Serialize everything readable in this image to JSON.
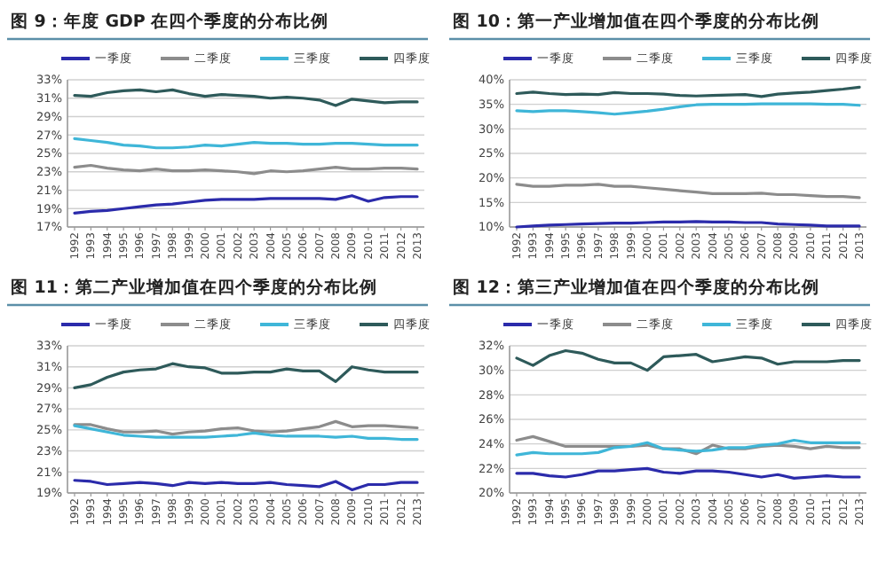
{
  "chart_data": [
    {
      "type": "line",
      "title": "图 9：年度 GDP 在四个季度的分布比例",
      "categories": [
        "1992",
        "1993",
        "1994",
        "1995",
        "1996",
        "1997",
        "1998",
        "1999",
        "2000",
        "2001",
        "2002",
        "2003",
        "2004",
        "2005",
        "2006",
        "2007",
        "2008",
        "2009",
        "2010",
        "2011",
        "2012",
        "2013"
      ],
      "ylim": [
        17,
        33
      ],
      "yticks": [
        {
          "value": 17,
          "label": "17%"
        },
        {
          "value": 19,
          "label": "19%"
        },
        {
          "value": 21,
          "label": "21%"
        },
        {
          "value": 23,
          "label": "23%"
        },
        {
          "value": 25,
          "label": "25%"
        },
        {
          "value": 27,
          "label": "27%"
        },
        {
          "value": 29,
          "label": "29%"
        },
        {
          "value": 31,
          "label": "31%"
        },
        {
          "value": 33,
          "label": "33%"
        }
      ],
      "grid": "y",
      "legend": "top",
      "series": [
        {
          "name": "一季度",
          "color": "#2b2bab",
          "values": [
            18.5,
            18.7,
            18.8,
            19.0,
            19.2,
            19.4,
            19.5,
            19.7,
            19.9,
            20.0,
            20.0,
            20.0,
            20.1,
            20.1,
            20.1,
            20.1,
            20.0,
            20.4,
            19.8,
            20.2,
            20.3,
            20.3
          ]
        },
        {
          "name": "二季度",
          "color": "#8c8c8c",
          "values": [
            23.5,
            23.7,
            23.4,
            23.2,
            23.1,
            23.3,
            23.1,
            23.1,
            23.2,
            23.1,
            23.0,
            22.8,
            23.1,
            23.0,
            23.1,
            23.3,
            23.5,
            23.3,
            23.3,
            23.4,
            23.4,
            23.3
          ]
        },
        {
          "name": "三季度",
          "color": "#3fb6d8",
          "values": [
            26.6,
            26.4,
            26.2,
            25.9,
            25.8,
            25.6,
            25.6,
            25.7,
            25.9,
            25.8,
            26.0,
            26.2,
            26.1,
            26.1,
            26.0,
            26.0,
            26.1,
            26.1,
            26.0,
            25.9,
            25.9,
            25.9
          ]
        },
        {
          "name": "四季度",
          "color": "#2e5a5a",
          "values": [
            31.3,
            31.2,
            31.6,
            31.8,
            31.9,
            31.7,
            31.9,
            31.5,
            31.2,
            31.4,
            31.3,
            31.2,
            31.0,
            31.1,
            31.0,
            30.8,
            30.2,
            30.9,
            30.7,
            30.5,
            30.6,
            30.6
          ]
        }
      ]
    },
    {
      "type": "line",
      "title": "图 10：第一产业增加值在四个季度的分布比例",
      "categories": [
        "1992",
        "1993",
        "1994",
        "1995",
        "1996",
        "1997",
        "1998",
        "1999",
        "2000",
        "2001",
        "2002",
        "2003",
        "2004",
        "2005",
        "2006",
        "2007",
        "2008",
        "2009",
        "2010",
        "2011",
        "2012",
        "2013"
      ],
      "ylim": [
        10,
        40
      ],
      "yticks": [
        {
          "value": 10,
          "label": "10%"
        },
        {
          "value": 15,
          "label": "15%"
        },
        {
          "value": 20,
          "label": "20%"
        },
        {
          "value": 25,
          "label": "25%"
        },
        {
          "value": 30,
          "label": "30%"
        },
        {
          "value": 35,
          "label": "35%"
        },
        {
          "value": 40,
          "label": "40%"
        }
      ],
      "grid": "y",
      "legend": "top",
      "series": [
        {
          "name": "一季度",
          "color": "#2b2bab",
          "values": [
            10.0,
            10.2,
            10.4,
            10.5,
            10.6,
            10.7,
            10.8,
            10.8,
            10.9,
            11.0,
            11.0,
            11.1,
            11.0,
            11.0,
            10.9,
            10.9,
            10.6,
            10.5,
            10.4,
            10.2,
            10.2,
            10.2
          ]
        },
        {
          "name": "二季度",
          "color": "#8c8c8c",
          "values": [
            18.7,
            18.3,
            18.3,
            18.5,
            18.5,
            18.7,
            18.3,
            18.3,
            18.0,
            17.7,
            17.4,
            17.1,
            16.8,
            16.8,
            16.8,
            16.9,
            16.6,
            16.6,
            16.4,
            16.2,
            16.2,
            16.0
          ]
        },
        {
          "name": "三季度",
          "color": "#3fb6d8",
          "values": [
            33.7,
            33.5,
            33.7,
            33.7,
            33.5,
            33.3,
            33.0,
            33.3,
            33.6,
            34.0,
            34.5,
            34.9,
            35.0,
            35.0,
            35.0,
            35.1,
            35.1,
            35.1,
            35.1,
            35.0,
            35.0,
            34.8
          ]
        },
        {
          "name": "四季度",
          "color": "#2e5a5a",
          "values": [
            37.2,
            37.5,
            37.2,
            37.0,
            37.1,
            37.0,
            37.4,
            37.2,
            37.2,
            37.1,
            36.8,
            36.7,
            36.8,
            36.9,
            37.0,
            36.6,
            37.1,
            37.3,
            37.5,
            37.8,
            38.1,
            38.5
          ]
        }
      ]
    },
    {
      "type": "line",
      "title": "图 11：第二产业增加值在四个季度的分布比例",
      "categories": [
        "1992",
        "1993",
        "1994",
        "1995",
        "1996",
        "1997",
        "1998",
        "1999",
        "2000",
        "2001",
        "2002",
        "2003",
        "2004",
        "2005",
        "2006",
        "2007",
        "2008",
        "2009",
        "2010",
        "2011",
        "2012",
        "2013"
      ],
      "ylim": [
        19,
        33
      ],
      "yticks": [
        {
          "value": 19,
          "label": "19%"
        },
        {
          "value": 21,
          "label": "21%"
        },
        {
          "value": 23,
          "label": "23%"
        },
        {
          "value": 25,
          "label": "25%"
        },
        {
          "value": 27,
          "label": "27%"
        },
        {
          "value": 29,
          "label": "29%"
        },
        {
          "value": 31,
          "label": "31%"
        },
        {
          "value": 33,
          "label": "33%"
        }
      ],
      "grid": "y",
      "legend": "top",
      "series": [
        {
          "name": "一季度",
          "color": "#2b2bab",
          "values": [
            20.2,
            20.1,
            19.8,
            19.9,
            20.0,
            19.9,
            19.7,
            20.0,
            19.9,
            20.0,
            19.9,
            19.9,
            20.0,
            19.8,
            19.7,
            19.6,
            20.1,
            19.3,
            19.8,
            19.8,
            20.0,
            20.0
          ]
        },
        {
          "name": "二季度",
          "color": "#8c8c8c",
          "values": [
            25.5,
            25.5,
            25.1,
            24.8,
            24.8,
            24.9,
            24.6,
            24.8,
            24.9,
            25.1,
            25.2,
            24.9,
            24.8,
            24.9,
            25.1,
            25.3,
            25.8,
            25.3,
            25.4,
            25.4,
            25.3,
            25.2
          ]
        },
        {
          "name": "三季度",
          "color": "#3fb6d8",
          "values": [
            25.4,
            25.1,
            24.8,
            24.5,
            24.4,
            24.3,
            24.3,
            24.3,
            24.3,
            24.4,
            24.5,
            24.7,
            24.5,
            24.4,
            24.4,
            24.4,
            24.3,
            24.4,
            24.2,
            24.2,
            24.1,
            24.1
          ]
        },
        {
          "name": "四季度",
          "color": "#2e5a5a",
          "values": [
            29.0,
            29.3,
            30.0,
            30.5,
            30.7,
            30.8,
            31.3,
            31.0,
            30.9,
            30.4,
            30.4,
            30.5,
            30.5,
            30.8,
            30.6,
            30.6,
            29.6,
            31.0,
            30.7,
            30.5,
            30.5,
            30.5
          ]
        }
      ]
    },
    {
      "type": "line",
      "title": "图 12：第三产业增加值在四个季度的分布比例",
      "categories": [
        "1992",
        "1993",
        "1994",
        "1995",
        "1996",
        "1997",
        "1998",
        "1999",
        "2000",
        "2001",
        "2002",
        "2003",
        "2004",
        "2005",
        "2006",
        "2007",
        "2008",
        "2009",
        "2010",
        "2011",
        "2012",
        "2013"
      ],
      "ylim": [
        20,
        32
      ],
      "yticks": [
        {
          "value": 20,
          "label": "20%"
        },
        {
          "value": 22,
          "label": "22%"
        },
        {
          "value": 24,
          "label": "24%"
        },
        {
          "value": 26,
          "label": "26%"
        },
        {
          "value": 28,
          "label": "28%"
        },
        {
          "value": 30,
          "label": "30%"
        },
        {
          "value": 32,
          "label": "32%"
        }
      ],
      "grid": "y",
      "legend": "top",
      "series": [
        {
          "name": "一季度",
          "color": "#2b2bab",
          "values": [
            21.6,
            21.6,
            21.4,
            21.3,
            21.5,
            21.8,
            21.8,
            21.9,
            22.0,
            21.7,
            21.6,
            21.8,
            21.8,
            21.7,
            21.5,
            21.3,
            21.5,
            21.2,
            21.3,
            21.4,
            21.3,
            21.3
          ]
        },
        {
          "name": "二季度",
          "color": "#8c8c8c",
          "values": [
            24.3,
            24.6,
            24.2,
            23.8,
            23.8,
            23.8,
            23.8,
            23.8,
            23.9,
            23.6,
            23.6,
            23.2,
            23.9,
            23.6,
            23.6,
            23.8,
            23.9,
            23.8,
            23.6,
            23.8,
            23.7,
            23.7
          ]
        },
        {
          "name": "三季度",
          "color": "#3fb6d8",
          "values": [
            23.1,
            23.3,
            23.2,
            23.2,
            23.2,
            23.3,
            23.7,
            23.8,
            24.1,
            23.6,
            23.5,
            23.4,
            23.5,
            23.7,
            23.7,
            23.9,
            24.0,
            24.3,
            24.1,
            24.1,
            24.1,
            24.1
          ]
        },
        {
          "name": "四季度",
          "color": "#2e5a5a",
          "values": [
            31.0,
            30.4,
            31.2,
            31.6,
            31.4,
            30.9,
            30.6,
            30.6,
            30.0,
            31.1,
            31.2,
            31.3,
            30.7,
            30.9,
            31.1,
            31.0,
            30.5,
            30.7,
            30.7,
            30.7,
            30.8,
            30.8
          ]
        }
      ]
    }
  ]
}
